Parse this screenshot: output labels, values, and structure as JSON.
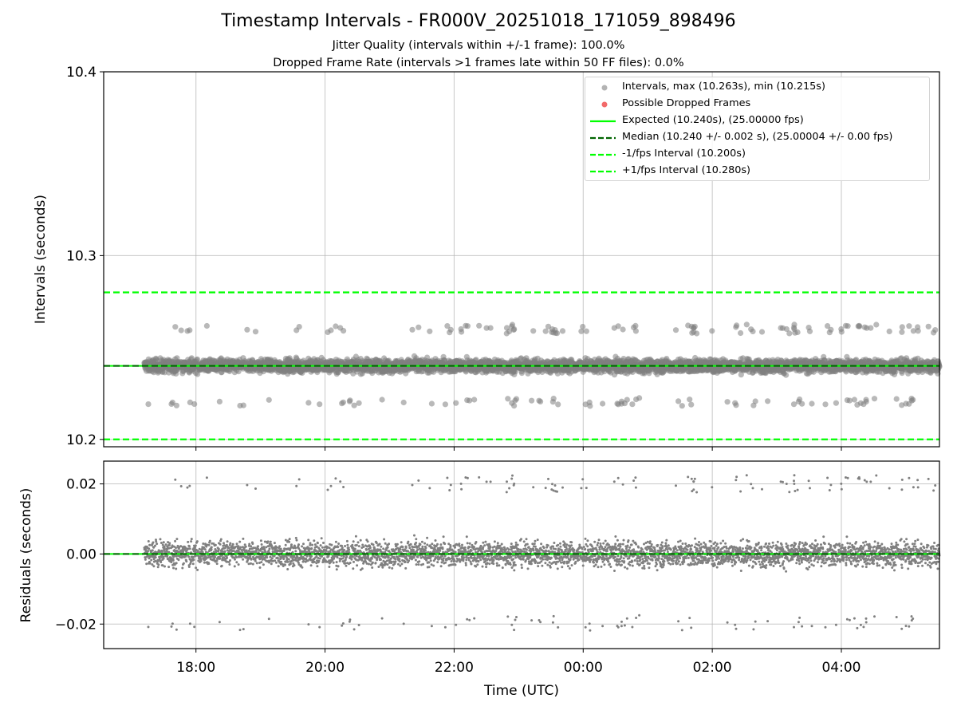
{
  "title": "Timestamp Intervals - FR000V_20251018_171059_898496",
  "subtitle_1": "Jitter Quality (intervals within +/-1 frame): 100.0%",
  "subtitle_2": "Dropped Frame Rate (intervals >1 frames late within 50 FF files): 0.0%",
  "colors": {
    "points": "#808080",
    "dropped": "#f05050",
    "expected": "#00ff00",
    "median": "#006400",
    "grid": "#b0b0b0"
  },
  "chart_data": [
    {
      "type": "scatter",
      "name": "intervals",
      "ylabel": "Intervals (seconds)",
      "xlabel": "",
      "ylim": [
        10.196,
        10.4
      ],
      "xlim_hours": [
        16.57,
        29.52
      ],
      "yticks": [
        10.2,
        10.3,
        10.4
      ],
      "ytick_labels": [
        "10.2",
        "10.3",
        "10.4"
      ],
      "xticks_hours": [
        18,
        20,
        22,
        24,
        26,
        28
      ],
      "grid": true,
      "legend_position": "top-right",
      "legend": [
        {
          "label": "Intervals, max (10.263s), min (10.215s)",
          "style": "gray-marker"
        },
        {
          "label": "Possible Dropped Frames",
          "style": "red-marker"
        },
        {
          "label": "Expected (10.240s), (25.00000 fps)",
          "style": "green-solid"
        },
        {
          "label": "Median (10.240 +/- 0.002 s), (25.00004 +/- 0.00 fps)",
          "style": "darkgreen-dashed"
        },
        {
          "label": "-1/fps Interval (10.200s)",
          "style": "green-dashed"
        },
        {
          "label": "+1/fps Interval (10.280s)",
          "style": "green-dashed"
        }
      ],
      "expected": 10.24,
      "median": 10.24,
      "lower_interval": 10.2,
      "upper_interval": 10.28,
      "max": 10.263,
      "min": 10.215,
      "series": {
        "start_hour": 17.2,
        "end_hour": 29.52,
        "step_hours": 0.00284,
        "center": 10.24,
        "core_spread": 0.0025,
        "outlier_clusters_hours": [
          22.9,
          23.45,
          24.7,
          25.6,
          26.5,
          27.2,
          28.4,
          29.1
        ],
        "outlier_offset": 0.02
      }
    },
    {
      "type": "scatter",
      "name": "residuals",
      "ylabel": "Residuals (seconds)",
      "xlabel": "Time (UTC)",
      "ylim": [
        -0.027,
        0.0265
      ],
      "yticks": [
        -0.02,
        0.0,
        0.02
      ],
      "ytick_labels": [
        "−0.02",
        "0.00",
        "0.02"
      ],
      "xticks_hours": [
        18,
        20,
        22,
        24,
        26,
        28
      ],
      "xtick_labels": [
        "18:00",
        "20:00",
        "22:00",
        "00:00",
        "02:00",
        "04:00"
      ],
      "grid": true,
      "zero_line": 0.0
    }
  ]
}
